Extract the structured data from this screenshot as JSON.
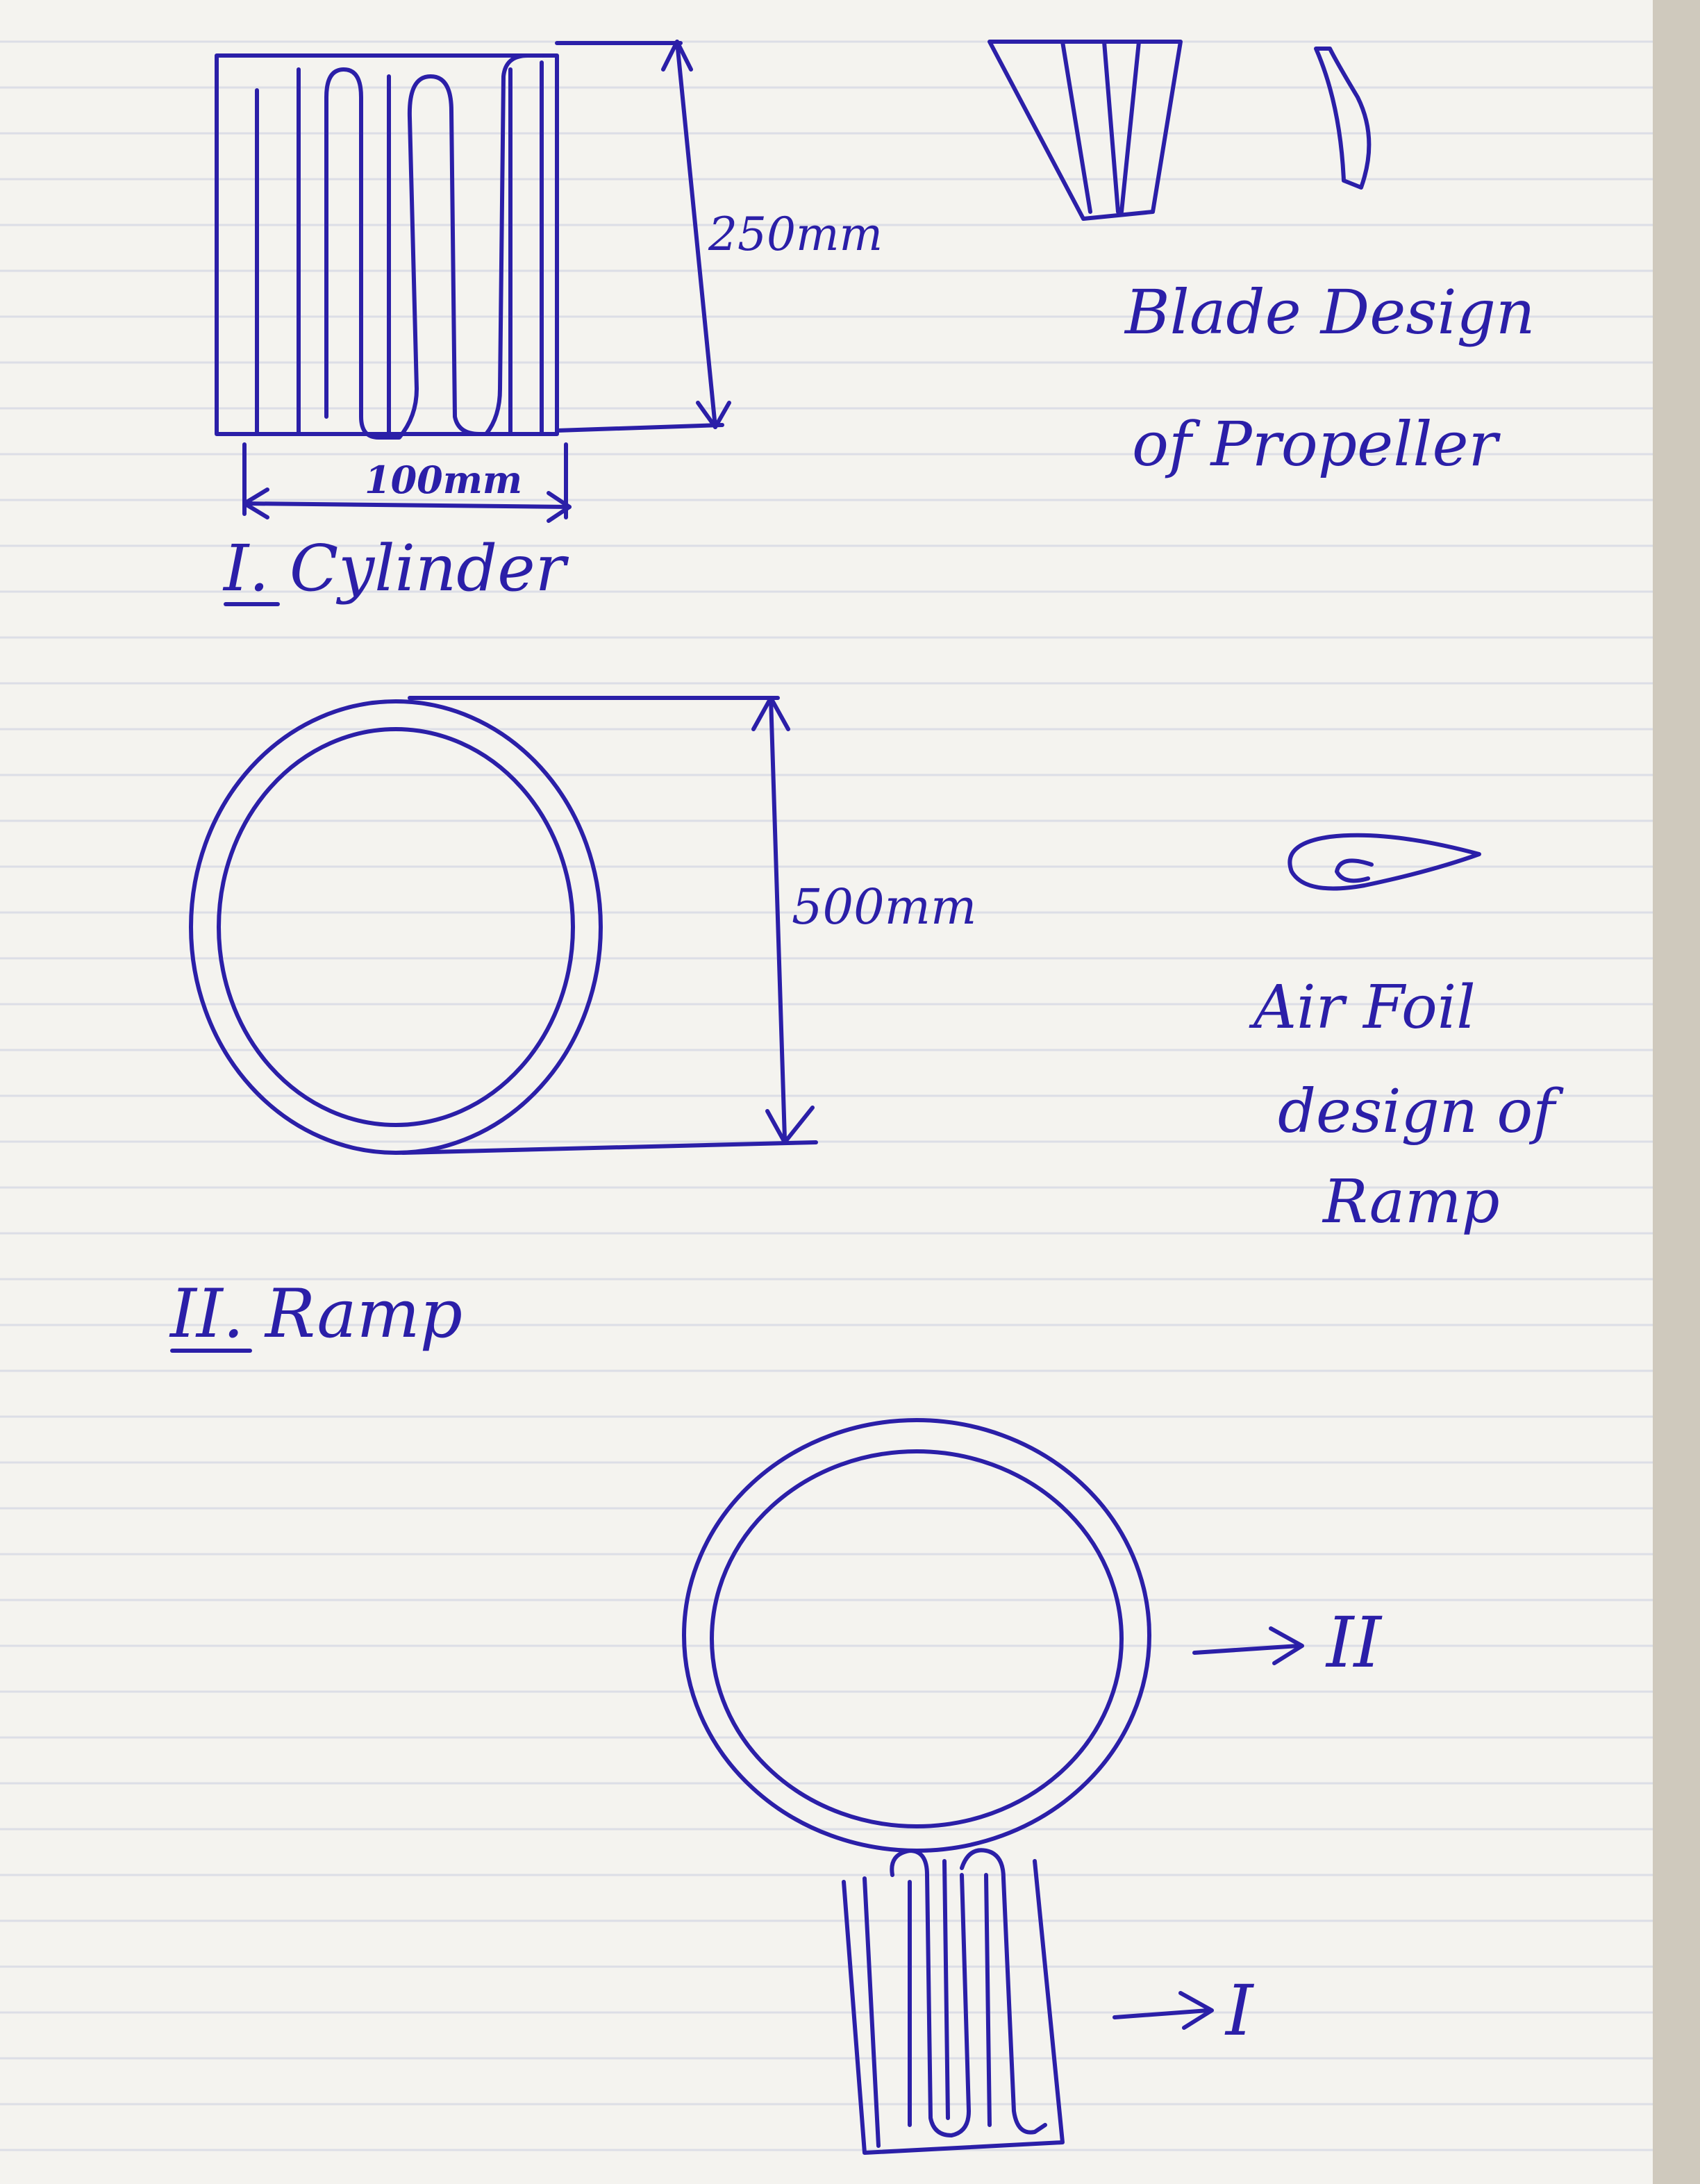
{
  "labels": {
    "cylinder_height": "250mm",
    "cylinder_width": "100mm",
    "cylinder_title": "I. Cylinder",
    "blade_title_line1": "Blade Design",
    "blade_title_line2": "of Propeller",
    "ramp_diameter": "500mm",
    "ramp_title": "II. Ramp",
    "airfoil_line1": "Air Foil",
    "airfoil_line2": "design of",
    "airfoil_line3": "Ramp",
    "assembly_ramp_ref": "II",
    "assembly_cylinder_ref": "I"
  },
  "colors": {
    "ink": "#2b1fa8",
    "paper": "#f4f3ef",
    "rule_line": "#dcdee6"
  }
}
